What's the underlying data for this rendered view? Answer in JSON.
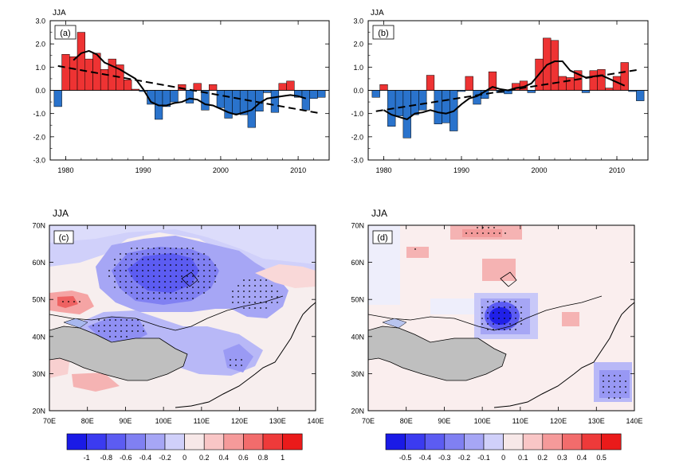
{
  "charts": [
    {
      "panel": "(a)",
      "season": "JJA",
      "type": "bar",
      "x": [
        1979,
        1980,
        1981,
        1982,
        1983,
        1984,
        1985,
        1986,
        1987,
        1988,
        1989,
        1990,
        1991,
        1992,
        1993,
        1994,
        1995,
        1996,
        1997,
        1998,
        1999,
        2000,
        2001,
        2002,
        2003,
        2004,
        2005,
        2006,
        2007,
        2008,
        2009,
        2010,
        2011,
        2012,
        2013
      ],
      "values": [
        -0.7,
        1.55,
        1.45,
        2.5,
        1.35,
        1.6,
        0.9,
        1.35,
        1.1,
        0.45,
        0.05,
        -0.05,
        -0.6,
        -1.25,
        -0.7,
        -0.5,
        0.25,
        -0.55,
        0.3,
        -0.85,
        0.25,
        -0.75,
        -1.2,
        -1.0,
        -1.05,
        -1.6,
        -0.9,
        -0.1,
        -0.95,
        0.3,
        0.4,
        -0.3,
        -0.85,
        -0.35,
        -0.3
      ],
      "smooth_x": [
        1981,
        1982,
        1983,
        1984,
        1985,
        1986,
        1987,
        1988,
        1989,
        1990,
        1991,
        1992,
        1993,
        1994,
        1995,
        1996,
        1997,
        1998,
        1999,
        2000,
        2001,
        2002,
        2003,
        2004,
        2005,
        2006,
        2007,
        2008,
        2009,
        2010,
        2011
      ],
      "smooth_y": [
        1.3,
        1.6,
        1.7,
        1.55,
        1.2,
        1.05,
        0.9,
        0.7,
        0.5,
        0.05,
        -0.5,
        -0.65,
        -0.65,
        -0.55,
        -0.5,
        -0.35,
        -0.4,
        -0.6,
        -0.65,
        -0.8,
        -0.95,
        -1.05,
        -0.95,
        -0.85,
        -0.55,
        -0.35,
        -0.3,
        -0.25,
        -0.2,
        -0.25,
        -0.35
      ],
      "trend": {
        "x": [
          1979,
          2013
        ],
        "y": [
          1.05,
          -1.0
        ]
      },
      "xticks": [
        1980,
        1990,
        2000,
        2010
      ],
      "yticks": [
        -3.0,
        -2.0,
        -1.0,
        0.0,
        1.0,
        2.0,
        3.0
      ],
      "ylim": [
        -3,
        3
      ],
      "xlim": [
        1978,
        2014
      ],
      "colors": {
        "positive": "#ee3333",
        "negative": "#2a73cc"
      }
    },
    {
      "panel": "(b)",
      "season": "JJA",
      "type": "bar",
      "x": [
        1979,
        1980,
        1981,
        1982,
        1983,
        1984,
        1985,
        1986,
        1987,
        1988,
        1989,
        1990,
        1991,
        1992,
        1993,
        1994,
        1995,
        1996,
        1997,
        1998,
        1999,
        2000,
        2001,
        2002,
        2003,
        2004,
        2005,
        2006,
        2007,
        2008,
        2009,
        2010,
        2011,
        2012,
        2013
      ],
      "values": [
        -0.3,
        0.25,
        -1.55,
        -1.1,
        -2.05,
        -1.05,
        -0.85,
        0.65,
        -1.45,
        -1.4,
        -1.75,
        -0.05,
        0.6,
        -0.6,
        -0.35,
        0.8,
        -0.1,
        -0.15,
        0.3,
        0.4,
        -0.1,
        1.35,
        2.25,
        2.15,
        0.6,
        0.55,
        0.85,
        -0.1,
        0.85,
        0.9,
        0.1,
        0.6,
        1.2,
        -0.05,
        -0.45
      ],
      "smooth_x": [
        1980,
        1981,
        1982,
        1983,
        1984,
        1985,
        1986,
        1987,
        1988,
        1989,
        1990,
        1991,
        1992,
        1993,
        1994,
        1995,
        1996,
        1997,
        1998,
        1999,
        2000,
        2001,
        2002,
        2003,
        2004,
        2005,
        2006,
        2007,
        2008,
        2009,
        2010,
        2011
      ],
      "smooth_y": [
        -0.85,
        -1.05,
        -1.15,
        -1.25,
        -1.0,
        -0.95,
        -0.85,
        -0.95,
        -1.0,
        -0.9,
        -0.6,
        -0.35,
        -0.25,
        -0.05,
        0.15,
        0.05,
        0.0,
        0.1,
        0.15,
        0.3,
        0.7,
        1.1,
        1.25,
        1.25,
        0.85,
        0.7,
        0.55,
        0.6,
        0.65,
        0.5,
        0.35,
        0.2
      ],
      "trend": {
        "x": [
          1979,
          2013
        ],
        "y": [
          -0.9,
          0.9
        ]
      },
      "xticks": [
        1980,
        1990,
        2000,
        2010
      ],
      "yticks": [
        -3.0,
        -2.0,
        -1.0,
        0.0,
        1.0,
        2.0,
        3.0
      ],
      "ylim": [
        -3,
        3
      ],
      "xlim": [
        1978,
        2014
      ],
      "colors": {
        "positive": "#ee3333",
        "negative": "#2a73cc"
      }
    }
  ],
  "maps": [
    {
      "panel": "(c)",
      "season": "JJA",
      "type": "heatmap",
      "lon_ticks": [
        "70E",
        "80E",
        "90E",
        "100E",
        "110E",
        "120E",
        "130E",
        "140E"
      ],
      "lat_ticks": [
        "20N",
        "30N",
        "40N",
        "50N",
        "60N",
        "70N"
      ],
      "colorbar": {
        "labels": [
          "-1",
          "-0.8",
          "-0.6",
          "-0.4",
          "-0.2",
          "0",
          "0.2",
          "0.4",
          "0.6",
          "0.8",
          "1"
        ],
        "colors": [
          "#1a1ae6",
          "#3b3bf0",
          "#5c5cf2",
          "#8080f2",
          "#a6a6f5",
          "#d0d0fa",
          "#f7e8e8",
          "#f9c6c6",
          "#f59a9a",
          "#f26c6c",
          "#ee3a3a",
          "#ea1a1a"
        ]
      }
    },
    {
      "panel": "(d)",
      "season": "JJA",
      "type": "heatmap",
      "lon_ticks": [
        "70E",
        "80E",
        "90E",
        "100E",
        "110E",
        "120E",
        "130E",
        "140E"
      ],
      "lat_ticks": [
        "20N",
        "30N",
        "40N",
        "50N",
        "60N",
        "70N"
      ],
      "colorbar": {
        "labels": [
          "-0.5",
          "-0.4",
          "-0.3",
          "-0.2",
          "-0.1",
          "0",
          "0.1",
          "0.2",
          "0.3",
          "0.4",
          "0.5"
        ],
        "colors": [
          "#1a1ae6",
          "#3b3bf0",
          "#5c5cf2",
          "#8080f2",
          "#a6a6f5",
          "#d0d0fa",
          "#f7e8e8",
          "#f9c6c6",
          "#f59a9a",
          "#f26c6c",
          "#ee3a3a",
          "#ea1a1a"
        ]
      }
    }
  ],
  "colors": {
    "plateau_mask": "#bfbfbf",
    "axis": "#000000"
  }
}
